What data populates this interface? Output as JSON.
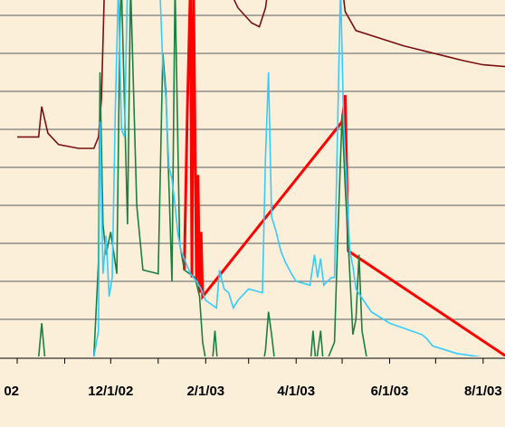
{
  "chart_data": {
    "type": "line",
    "title": "",
    "xlabel": "",
    "ylabel": "",
    "x_tick_labels": [
      "02",
      "12/1/02",
      "2/1/03",
      "4/1/03",
      "6/1/03",
      "8/1/03"
    ],
    "x_tick_dates": [
      "2002-10-01",
      "2002-12-01",
      "2003-02-01",
      "2003-04-01",
      "2003-06-01",
      "2003-08-01"
    ],
    "x_range": [
      "2002-10-01",
      "2003-08-31"
    ],
    "y_range": [
      0,
      1
    ],
    "grid": "horizontal",
    "y_gridline_values": [
      0.2,
      0.3,
      0.4,
      0.5,
      0.6,
      0.7,
      0.8,
      0.9,
      1.0
    ],
    "colors": {
      "background": "#fbefd9",
      "grid": "#7a7a7a",
      "axis": "#000000",
      "dark_red": "#7b1010",
      "red": "#ff0000",
      "green": "#1a8040",
      "cyan": "#33ccff"
    },
    "series": [
      {
        "color_key": "dark_red",
        "points": [
          [
            "2002-10-01",
            0.68
          ],
          [
            "2002-10-15",
            0.68
          ],
          [
            "2002-10-17",
            0.76
          ],
          [
            "2002-10-21",
            0.69
          ],
          [
            "2002-10-28",
            0.66
          ],
          [
            "2002-11-10",
            0.65
          ],
          [
            "2002-11-20",
            0.65
          ],
          [
            "2002-11-23",
            0.68
          ],
          [
            "2002-11-25",
            0.78
          ],
          [
            "2002-11-27",
            1.08
          ],
          [
            "2003-02-15",
            1.08
          ],
          [
            "2003-02-22",
            1.02
          ],
          [
            "2003-03-03",
            0.98
          ],
          [
            "2003-03-08",
            0.97
          ],
          [
            "2003-03-12",
            1.02
          ],
          [
            "2003-03-14",
            1.08
          ],
          [
            "2003-05-01",
            1.08
          ],
          [
            "2003-05-03",
            1.01
          ],
          [
            "2003-05-10",
            0.96
          ],
          [
            "2003-06-10",
            0.92
          ],
          [
            "2003-07-10",
            0.89
          ],
          [
            "2003-07-20",
            0.88
          ],
          [
            "2003-08-01",
            0.87
          ],
          [
            "2003-08-31",
            0.86
          ]
        ]
      },
      {
        "color_key": "red",
        "points": [
          [
            "2003-01-18",
            0.33
          ],
          [
            "2003-01-20",
            0.75
          ],
          [
            "2003-01-22",
            1.08
          ],
          [
            "2003-01-23",
            0.31
          ],
          [
            "2003-01-24",
            1.08
          ],
          [
            "2003-01-26",
            0.3
          ],
          [
            "2003-01-27",
            0.58
          ],
          [
            "2003-01-28",
            0.27
          ],
          [
            "2003-01-29",
            0.43
          ],
          [
            "2003-01-30",
            0.26
          ],
          [
            "2003-05-01",
            0.72
          ],
          [
            "2003-05-03",
            0.79
          ],
          [
            "2003-05-05",
            0.38
          ],
          [
            "2003-08-17",
            0.1
          ],
          [
            "2003-08-18",
            0.19
          ],
          [
            "2003-08-19",
            0.1
          ]
        ]
      },
      {
        "color_key": "green",
        "points": [
          [
            "2002-10-01",
            0.1
          ],
          [
            "2002-10-15",
            0.1
          ],
          [
            "2002-10-17",
            0.19
          ],
          [
            "2002-10-19",
            0.1
          ],
          [
            "2002-11-20",
            0.1
          ],
          [
            "2002-11-23",
            0.35
          ],
          [
            "2002-11-24",
            0.85
          ],
          [
            "2002-11-26",
            0.45
          ],
          [
            "2002-11-28",
            0.37
          ],
          [
            "2002-12-01",
            0.43
          ],
          [
            "2002-12-05",
            0.32
          ],
          [
            "2002-12-07",
            0.98
          ],
          [
            "2002-12-08",
            1.08
          ],
          [
            "2002-12-12",
            0.45
          ],
          [
            "2002-12-14",
            1.08
          ],
          [
            "2002-12-18",
            0.5
          ],
          [
            "2002-12-22",
            0.33
          ],
          [
            "2003-01-01",
            0.32
          ],
          [
            "2003-01-04",
            0.9
          ],
          [
            "2003-01-06",
            0.8
          ],
          [
            "2003-01-08",
            0.55
          ],
          [
            "2003-01-10",
            0.3
          ],
          [
            "2003-01-12",
            1.08
          ],
          [
            "2003-01-15",
            0.4
          ],
          [
            "2003-01-18",
            0.33
          ],
          [
            "2003-01-25",
            0.31
          ],
          [
            "2003-01-28",
            0.26
          ],
          [
            "2003-01-29",
            0.2
          ],
          [
            "2003-01-30",
            0.14
          ],
          [
            "2003-02-02",
            0.07
          ],
          [
            "2003-02-05",
            0.07
          ],
          [
            "2003-02-07",
            0.17
          ],
          [
            "2003-02-09",
            0.07
          ],
          [
            "2003-03-10",
            0.07
          ],
          [
            "2003-03-12",
            0.12
          ],
          [
            "2003-03-14",
            0.22
          ],
          [
            "2003-03-16",
            0.16
          ],
          [
            "2003-03-18",
            0.09
          ],
          [
            "2003-03-22",
            0.07
          ],
          [
            "2003-04-10",
            0.07
          ],
          [
            "2003-04-12",
            0.17
          ],
          [
            "2003-04-14",
            0.08
          ],
          [
            "2003-04-17",
            0.17
          ],
          [
            "2003-04-19",
            0.07
          ],
          [
            "2003-04-26",
            0.14
          ],
          [
            "2003-04-28",
            0.4
          ],
          [
            "2003-05-01",
            0.74
          ],
          [
            "2003-05-03",
            0.55
          ],
          [
            "2003-05-05",
            0.4
          ],
          [
            "2003-05-08",
            0.16
          ],
          [
            "2003-05-10",
            0.2
          ],
          [
            "2003-05-12",
            0.37
          ],
          [
            "2003-05-14",
            0.17
          ],
          [
            "2003-05-17",
            0.1
          ],
          [
            "2003-08-17",
            0.1
          ],
          [
            "2003-08-18",
            0.14
          ],
          [
            "2003-08-19",
            0.1
          ],
          [
            "2003-08-31",
            0.1
          ]
        ]
      },
      {
        "color_key": "cyan",
        "points": [
          [
            "2002-10-01",
            0.1
          ],
          [
            "2002-11-20",
            0.1
          ],
          [
            "2002-11-23",
            0.17
          ],
          [
            "2002-11-24",
            0.72
          ],
          [
            "2002-11-26",
            0.32
          ],
          [
            "2002-11-28",
            0.42
          ],
          [
            "2002-11-30",
            0.26
          ],
          [
            "2002-12-02",
            0.31
          ],
          [
            "2002-12-04",
            0.75
          ],
          [
            "2002-12-06",
            1.08
          ],
          [
            "2002-12-08",
            0.7
          ],
          [
            "2002-12-10",
            0.68
          ],
          [
            "2002-12-12",
            1.08
          ],
          [
            "2003-01-02",
            1.08
          ],
          [
            "2003-01-04",
            0.87
          ],
          [
            "2003-01-06",
            0.78
          ],
          [
            "2003-01-08",
            0.6
          ],
          [
            "2003-01-10",
            0.57
          ],
          [
            "2003-01-12",
            0.5
          ],
          [
            "2003-01-14",
            0.42
          ],
          [
            "2003-01-16",
            0.38
          ],
          [
            "2003-01-19",
            0.35
          ],
          [
            "2003-01-22",
            0.32
          ],
          [
            "2003-01-26",
            0.3
          ],
          [
            "2003-01-29",
            0.28
          ],
          [
            "2003-02-01",
            0.25
          ],
          [
            "2003-02-08",
            0.23
          ],
          [
            "2003-02-10",
            0.33
          ],
          [
            "2003-02-13",
            0.28
          ],
          [
            "2003-02-16",
            0.27
          ],
          [
            "2003-02-19",
            0.23
          ],
          [
            "2003-02-22",
            0.25
          ],
          [
            "2003-03-01",
            0.28
          ],
          [
            "2003-03-10",
            0.27
          ],
          [
            "2003-03-12",
            0.63
          ],
          [
            "2003-03-14",
            0.85
          ],
          [
            "2003-03-16",
            0.47
          ],
          [
            "2003-03-19",
            0.43
          ],
          [
            "2003-03-22",
            0.38
          ],
          [
            "2003-03-25",
            0.35
          ],
          [
            "2003-03-29",
            0.32
          ],
          [
            "2003-04-01",
            0.3
          ],
          [
            "2003-04-10",
            0.29
          ],
          [
            "2003-04-13",
            0.37
          ],
          [
            "2003-04-15",
            0.31
          ],
          [
            "2003-04-17",
            0.36
          ],
          [
            "2003-04-19",
            0.29
          ],
          [
            "2003-04-24",
            0.31
          ],
          [
            "2003-04-26",
            0.31
          ],
          [
            "2003-04-28",
            0.7
          ],
          [
            "2003-04-30",
            1.08
          ],
          [
            "2003-05-02",
            0.72
          ],
          [
            "2003-05-04",
            0.55
          ],
          [
            "2003-05-06",
            0.38
          ],
          [
            "2003-05-08",
            0.34
          ],
          [
            "2003-05-10",
            0.28
          ],
          [
            "2003-05-15",
            0.25
          ],
          [
            "2003-05-20",
            0.22
          ],
          [
            "2003-06-01",
            0.19
          ],
          [
            "2003-06-15",
            0.17
          ],
          [
            "2003-06-22",
            0.16
          ],
          [
            "2003-06-25",
            0.15
          ],
          [
            "2003-06-29",
            0.13
          ],
          [
            "2003-07-15",
            0.11
          ],
          [
            "2003-08-01",
            0.1
          ],
          [
            "2003-08-31",
            0.1
          ]
        ]
      }
    ]
  }
}
